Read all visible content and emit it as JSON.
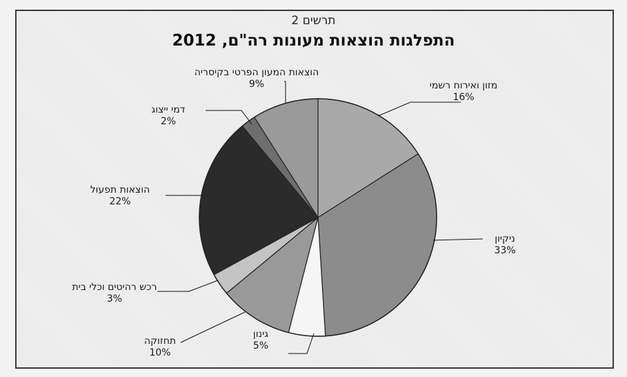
{
  "figure_label": "תרשים 2",
  "chart_data": {
    "type": "pie",
    "title": "התפלגות הוצאות מעונות רה\"ם, 2012",
    "slices": [
      {
        "label": "מזון ואירוח רשמי",
        "value": 16,
        "value_label": "16%",
        "color": "#a9a9a9"
      },
      {
        "label": "ניקיון",
        "value": 33,
        "value_label": "33%",
        "color": "#8c8c8c"
      },
      {
        "label": "גינון",
        "value": 5,
        "value_label": "5%",
        "color": "#f5f5f5"
      },
      {
        "label": "תחזוקה",
        "value": 10,
        "value_label": "10%",
        "color": "#999999"
      },
      {
        "label": "רכש רהיטים וכלי בית",
        "value": 3,
        "value_label": "3%",
        "color": "#c4c4c4"
      },
      {
        "label": "הוצאות תפעול",
        "value": 22,
        "value_label": "22%",
        "color": "#2b2b2b"
      },
      {
        "label": "דמי ייצוג",
        "value": 2,
        "value_label": "2%",
        "color": "#6e6e6e"
      },
      {
        "label": "הוצאות המעון הפרטי בקיסריה",
        "value": 9,
        "value_label": "9%",
        "color": "#9a9a9a"
      }
    ]
  }
}
